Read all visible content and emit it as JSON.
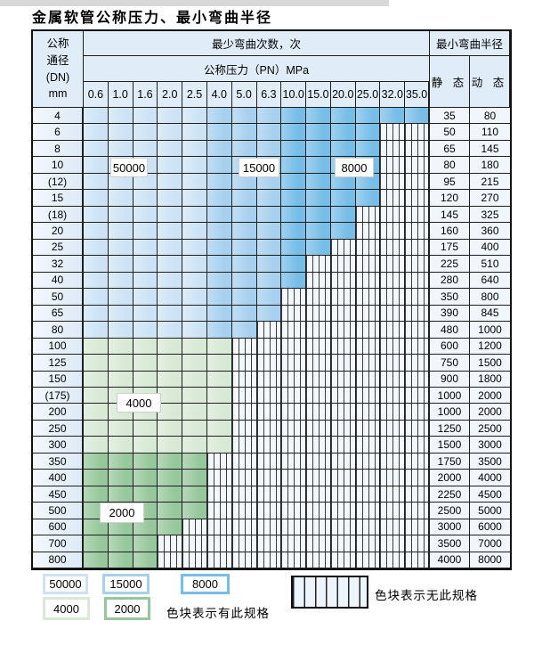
{
  "title": "金属软管公称压力、最小弯曲半径",
  "table": {
    "dn_header_lines": [
      "公称",
      "通径",
      "(DN)",
      "mm"
    ],
    "bend_times_header": "最少弯曲次数，次",
    "pressure_header": "公称压力（PN）MPa",
    "radius_header": "最小弯曲半径",
    "static_header": "静 态",
    "dynamic_header": "动 态",
    "pressures": [
      "0.6",
      "1.0",
      "1.6",
      "2.0",
      "2.5",
      "4.0",
      "5.0",
      "6.3",
      "10.0",
      "15.0",
      "20.0",
      "25.0",
      "32.0",
      "35.0"
    ],
    "rows": [
      {
        "dn": "4",
        "static": "35",
        "dynamic": "80",
        "last": 13,
        "shade": "blue"
      },
      {
        "dn": "6",
        "static": "50",
        "dynamic": "110",
        "last": 11,
        "shade": "blue"
      },
      {
        "dn": "8",
        "static": "65",
        "dynamic": "145",
        "last": 11,
        "shade": "blue"
      },
      {
        "dn": "10",
        "static": "80",
        "dynamic": "180",
        "last": 11,
        "shade": "blue"
      },
      {
        "dn": "(12)",
        "static": "95",
        "dynamic": "215",
        "last": 11,
        "shade": "blue"
      },
      {
        "dn": "15",
        "static": "120",
        "dynamic": "270",
        "last": 11,
        "shade": "blue"
      },
      {
        "dn": "(18)",
        "static": "145",
        "dynamic": "325",
        "last": 10,
        "shade": "blue"
      },
      {
        "dn": "20",
        "static": "160",
        "dynamic": "360",
        "last": 10,
        "shade": "blue"
      },
      {
        "dn": "25",
        "static": "175",
        "dynamic": "400",
        "last": 9,
        "shade": "blue"
      },
      {
        "dn": "32",
        "static": "225",
        "dynamic": "510",
        "last": 8,
        "shade": "blue"
      },
      {
        "dn": "40",
        "static": "280",
        "dynamic": "640",
        "last": 8,
        "shade": "blue"
      },
      {
        "dn": "50",
        "static": "350",
        "dynamic": "800",
        "last": 7,
        "shade": "blue"
      },
      {
        "dn": "65",
        "static": "390",
        "dynamic": "845",
        "last": 7,
        "shade": "blue"
      },
      {
        "dn": "80",
        "static": "480",
        "dynamic": "1000",
        "last": 6,
        "shade": "blue"
      },
      {
        "dn": "100",
        "static": "600",
        "dynamic": "1200",
        "last": 5,
        "shade": "green4000"
      },
      {
        "dn": "125",
        "static": "750",
        "dynamic": "1500",
        "last": 5,
        "shade": "green4000"
      },
      {
        "dn": "150",
        "static": "900",
        "dynamic": "1800",
        "last": 5,
        "shade": "green4000"
      },
      {
        "dn": "(175)",
        "static": "1000",
        "dynamic": "2000",
        "last": 5,
        "shade": "green4000"
      },
      {
        "dn": "200",
        "static": "1000",
        "dynamic": "2000",
        "last": 5,
        "shade": "green4000"
      },
      {
        "dn": "250",
        "static": "1250",
        "dynamic": "2500",
        "last": 5,
        "shade": "green4000"
      },
      {
        "dn": "300",
        "static": "1500",
        "dynamic": "3000",
        "last": 5,
        "shade": "green4000"
      },
      {
        "dn": "350",
        "static": "1750",
        "dynamic": "3500",
        "last": 4,
        "shade": "green2000"
      },
      {
        "dn": "400",
        "static": "2000",
        "dynamic": "4000",
        "last": 4,
        "shade": "green2000"
      },
      {
        "dn": "450",
        "static": "2250",
        "dynamic": "4500",
        "last": 4,
        "shade": "green2000"
      },
      {
        "dn": "500",
        "static": "2500",
        "dynamic": "5000",
        "last": 4,
        "shade": "green2000"
      },
      {
        "dn": "600",
        "static": "3000",
        "dynamic": "6000",
        "last": 3,
        "shade": "green2000"
      },
      {
        "dn": "700",
        "static": "3500",
        "dynamic": "7000",
        "last": 2,
        "shade": "green2000"
      },
      {
        "dn": "800",
        "static": "4000",
        "dynamic": "8000",
        "last": 2,
        "shade": "green2000"
      }
    ]
  },
  "overlay_labels": {
    "l50000": "50000",
    "l15000": "15000",
    "l8000": "8000",
    "l4000": "4000",
    "l2000": "2000"
  },
  "legend": {
    "items": [
      {
        "label": "50000",
        "color_key": "blue_50000"
      },
      {
        "label": "15000",
        "color_key": "blue_15000"
      },
      {
        "label": "8000",
        "color_key": "blue_8000"
      },
      {
        "label": "4000",
        "color_key": "green_4000"
      },
      {
        "label": "2000",
        "color_key": "green_2000"
      }
    ],
    "present_caption": "色块表示有此规格",
    "absent_caption": "色块表示无此规格"
  },
  "colors": {
    "blue_50000": "#cde3f5",
    "blue_15000": "#a6d0ee",
    "blue_8000": "#76bde8",
    "green_4000": "#d8e9d5",
    "green_2000": "#97c79c",
    "hatch_bg": "#f3f8fc",
    "hatch_line": "#3c3c3c",
    "header_bg": "#e0edf8",
    "value_bg": "#f0f6fb"
  }
}
